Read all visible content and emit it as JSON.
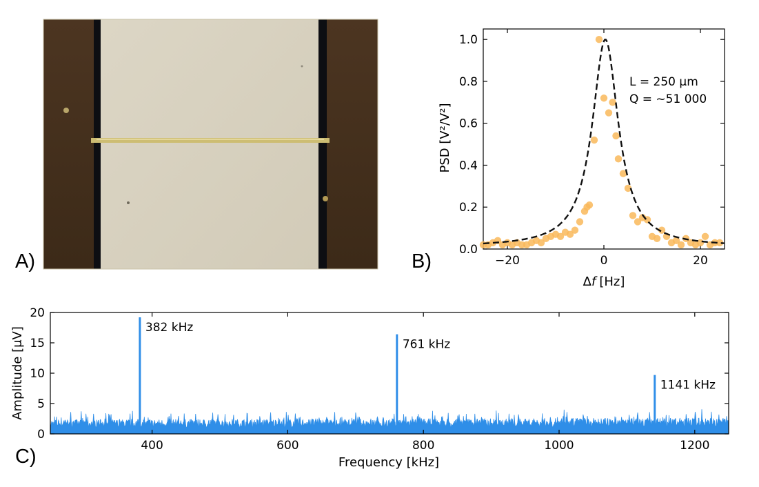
{
  "panels": {
    "a": "A)",
    "b": "B)",
    "c": "C)"
  },
  "colors": {
    "psd_points": "#f9b85a",
    "fit_line": "#111111",
    "spectrum": "#2f8ee8",
    "frame": "#c9c2a7",
    "membrane": "#d8d2c1",
    "substrate": "#4a3420"
  },
  "chart_data": [
    {
      "id": "psd",
      "type": "scatter",
      "xlabel_symbol": "Δ",
      "xlabel_var": "f",
      "xlabel_unit": "[Hz]",
      "ylabel": "PSD [V²/V²]",
      "xlim": [
        -25,
        25
      ],
      "ylim": [
        0,
        1.05
      ],
      "xticks": [
        -20,
        0,
        20
      ],
      "yticks": [
        0.0,
        0.2,
        0.4,
        0.6,
        0.8,
        1.0
      ],
      "ytick_labels": [
        "0.0",
        "0.2",
        "0.4",
        "0.6",
        "0.8",
        "1.0"
      ],
      "annotation_lines": [
        "L = 250 μm",
        "Q = ~51 000"
      ],
      "series": [
        {
          "kind": "points",
          "x": [
            -25,
            -24,
            -23,
            -22,
            -21,
            -20,
            -19,
            -18,
            -17,
            -16,
            -15,
            -14,
            -13,
            -12,
            -11,
            -10,
            -9,
            -8,
            -7,
            -6,
            -5,
            -4,
            -3.5,
            -3,
            -2,
            -1,
            0,
            1,
            1.8,
            2.5,
            3,
            4,
            5,
            6,
            7,
            8,
            9,
            10,
            11,
            12,
            13,
            14,
            15,
            16,
            17,
            18,
            19,
            20,
            21,
            22,
            23,
            24
          ],
          "y": [
            0.02,
            0.02,
            0.03,
            0.04,
            0.02,
            0.03,
            0.02,
            0.03,
            0.02,
            0.02,
            0.03,
            0.04,
            0.03,
            0.05,
            0.06,
            0.07,
            0.06,
            0.08,
            0.07,
            0.09,
            0.13,
            0.18,
            0.2,
            0.21,
            0.52,
            1.0,
            0.72,
            0.65,
            0.7,
            0.54,
            0.43,
            0.36,
            0.29,
            0.16,
            0.13,
            0.15,
            0.14,
            0.06,
            0.05,
            0.09,
            0.06,
            0.03,
            0.04,
            0.02,
            0.05,
            0.03,
            0.02,
            0.03,
            0.06,
            0.02,
            0.03,
            0.03
          ]
        },
        {
          "kind": "lorentzian-fit",
          "center": 0.3,
          "hwhm": 3.3,
          "peak": 1.0,
          "offset": 0.01
        }
      ]
    },
    {
      "id": "spectrum",
      "type": "line",
      "xlabel": "Frequency [kHz]",
      "ylabel": "Amplitude [μV]",
      "xlim": [
        250,
        1250
      ],
      "ylim": [
        0,
        20
      ],
      "xticks": [
        400,
        600,
        800,
        1000,
        1200
      ],
      "yticks": [
        0,
        5,
        10,
        15,
        20
      ],
      "noise_floor_uV": [
        1.0,
        3.5
      ],
      "peaks": [
        {
          "x": 382,
          "y": 19.2,
          "label": "382 kHz"
        },
        {
          "x": 761,
          "y": 16.4,
          "label": "761 kHz"
        },
        {
          "x": 1141,
          "y": 9.7,
          "label": "1141 kHz"
        }
      ]
    }
  ]
}
